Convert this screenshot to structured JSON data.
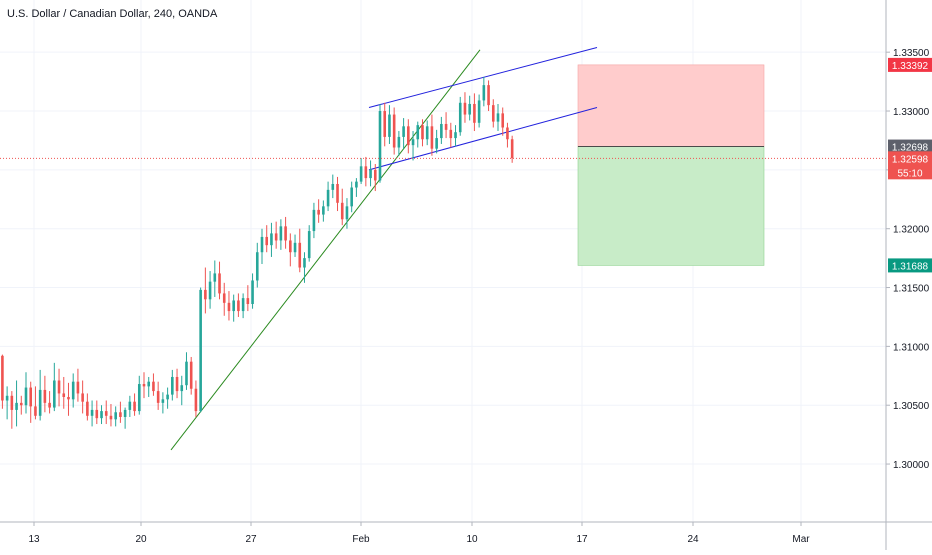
{
  "chart_data": {
    "type": "candlestick",
    "title": "U.S. Dollar / Canadian Dollar, 240, OANDA",
    "colors": {
      "up": "#26a69a",
      "down": "#ef5350",
      "trendline": "#2a8a1f",
      "channel": "#2222dd",
      "risk_zone": "#ffcccc",
      "reward_zone": "#c8ecc8",
      "stop_label": "#f23645",
      "entry_label": "#5d606b",
      "current_label": "#ef5350",
      "target_label": "#089981"
    },
    "y_axis": {
      "range": [
        1.2955,
        1.3385
      ],
      "ticks": [
        "1.33500",
        "1.33000",
        "1.32500",
        "1.32000",
        "1.31500",
        "1.31000",
        "1.30500",
        "1.30000"
      ],
      "tick_values": [
        1.335,
        1.33,
        1.325,
        1.32,
        1.315,
        1.31,
        1.305,
        1.3
      ]
    },
    "x_axis": {
      "ticks": [
        "13",
        "20",
        "27",
        "Feb",
        "10",
        "17",
        "24",
        "Mar"
      ]
    },
    "series": [
      {
        "values": [
          [
            1.3092,
            1.3093,
            1.3047,
            1.3054
          ],
          [
            1.3054,
            1.3066,
            1.3038,
            1.3058
          ],
          [
            1.3058,
            1.3062,
            1.303,
            1.3046
          ],
          [
            1.3046,
            1.3071,
            1.3032,
            1.3052
          ],
          [
            1.3052,
            1.3058,
            1.3042,
            1.305
          ],
          [
            1.305,
            1.3078,
            1.3043,
            1.3065
          ],
          [
            1.3065,
            1.307,
            1.3035,
            1.3049
          ],
          [
            1.3049,
            1.3066,
            1.3038,
            1.3041
          ],
          [
            1.3041,
            1.308,
            1.3037,
            1.3063
          ],
          [
            1.3063,
            1.3075,
            1.3044,
            1.3052
          ],
          [
            1.3052,
            1.3062,
            1.3043,
            1.3048
          ],
          [
            1.3048,
            1.3086,
            1.3045,
            1.3071
          ],
          [
            1.3071,
            1.3081,
            1.3049,
            1.306
          ],
          [
            1.306,
            1.3074,
            1.3047,
            1.3057
          ],
          [
            1.3057,
            1.3069,
            1.3041,
            1.3055
          ],
          [
            1.3055,
            1.3077,
            1.3048,
            1.307
          ],
          [
            1.307,
            1.3081,
            1.3053,
            1.306
          ],
          [
            1.306,
            1.3071,
            1.3043,
            1.3053
          ],
          [
            1.3053,
            1.306,
            1.3037,
            1.3041
          ],
          [
            1.3041,
            1.3054,
            1.3032,
            1.3046
          ],
          [
            1.3046,
            1.3054,
            1.3034,
            1.3039
          ],
          [
            1.3039,
            1.305,
            1.3034,
            1.3045
          ],
          [
            1.3045,
            1.3054,
            1.3034,
            1.3041
          ],
          [
            1.3041,
            1.3051,
            1.3032,
            1.3038
          ],
          [
            1.3038,
            1.3049,
            1.3032,
            1.3044
          ],
          [
            1.3044,
            1.3053,
            1.3035,
            1.304
          ],
          [
            1.304,
            1.3048,
            1.303,
            1.3046
          ],
          [
            1.3046,
            1.3058,
            1.304,
            1.3053
          ],
          [
            1.3053,
            1.306,
            1.3041,
            1.3045
          ],
          [
            1.3045,
            1.3075,
            1.3042,
            1.3068
          ],
          [
            1.3068,
            1.3078,
            1.3056,
            1.3066
          ],
          [
            1.3066,
            1.3074,
            1.3057,
            1.307
          ],
          [
            1.307,
            1.3077,
            1.3058,
            1.3062
          ],
          [
            1.3062,
            1.307,
            1.3046,
            1.3052
          ],
          [
            1.3052,
            1.3061,
            1.3043,
            1.3055
          ],
          [
            1.3055,
            1.3065,
            1.3047,
            1.3059
          ],
          [
            1.3059,
            1.308,
            1.3054,
            1.3074
          ],
          [
            1.3074,
            1.3081,
            1.3056,
            1.3062
          ],
          [
            1.3062,
            1.3075,
            1.305,
            1.3067
          ],
          [
            1.3067,
            1.3095,
            1.3063,
            1.3087
          ],
          [
            1.3087,
            1.3091,
            1.3059,
            1.3064
          ],
          [
            1.3064,
            1.3071,
            1.304,
            1.3045
          ],
          [
            1.3045,
            1.315,
            1.3044,
            1.3148
          ],
          [
            1.3148,
            1.3167,
            1.3128,
            1.314
          ],
          [
            1.314,
            1.3164,
            1.3132,
            1.3155
          ],
          [
            1.3155,
            1.3173,
            1.3142,
            1.3162
          ],
          [
            1.3162,
            1.3172,
            1.314,
            1.3145
          ],
          [
            1.3145,
            1.3154,
            1.3126,
            1.3137
          ],
          [
            1.3137,
            1.3147,
            1.3122,
            1.313
          ],
          [
            1.313,
            1.3144,
            1.3121,
            1.3139
          ],
          [
            1.3139,
            1.3145,
            1.3125,
            1.313
          ],
          [
            1.313,
            1.3145,
            1.3124,
            1.3141
          ],
          [
            1.3141,
            1.3152,
            1.313,
            1.3136
          ],
          [
            1.3136,
            1.3162,
            1.3132,
            1.3156
          ],
          [
            1.3156,
            1.3188,
            1.315,
            1.318
          ],
          [
            1.318,
            1.32,
            1.317,
            1.3193
          ],
          [
            1.3193,
            1.3203,
            1.318,
            1.3186
          ],
          [
            1.3186,
            1.3205,
            1.3176,
            1.3196
          ],
          [
            1.3196,
            1.3206,
            1.3183,
            1.319
          ],
          [
            1.319,
            1.3208,
            1.3182,
            1.3202
          ],
          [
            1.3202,
            1.321,
            1.3183,
            1.319
          ],
          [
            1.319,
            1.3196,
            1.3168,
            1.318
          ],
          [
            1.318,
            1.3195,
            1.3176,
            1.3188
          ],
          [
            1.3188,
            1.32,
            1.3163,
            1.3167
          ],
          [
            1.3167,
            1.318,
            1.3154,
            1.3175
          ],
          [
            1.3175,
            1.3203,
            1.3172,
            1.3198
          ],
          [
            1.3198,
            1.3222,
            1.3192,
            1.3216
          ],
          [
            1.3216,
            1.3225,
            1.3205,
            1.3212
          ],
          [
            1.3212,
            1.3224,
            1.3206,
            1.3219
          ],
          [
            1.3219,
            1.324,
            1.3215,
            1.3233
          ],
          [
            1.3233,
            1.3246,
            1.3226,
            1.3238
          ],
          [
            1.3238,
            1.3244,
            1.3215,
            1.3222
          ],
          [
            1.3222,
            1.3234,
            1.3203,
            1.3208
          ],
          [
            1.3208,
            1.3226,
            1.32,
            1.3219
          ],
          [
            1.3219,
            1.324,
            1.3214,
            1.3235
          ],
          [
            1.3235,
            1.3243,
            1.3227,
            1.324
          ],
          [
            1.324,
            1.326,
            1.3238,
            1.3253
          ],
          [
            1.3253,
            1.3261,
            1.3236,
            1.3243
          ],
          [
            1.3243,
            1.3258,
            1.3236,
            1.325
          ],
          [
            1.325,
            1.3255,
            1.3232,
            1.3241
          ],
          [
            1.3241,
            1.3306,
            1.3239,
            1.33
          ],
          [
            1.33,
            1.3307,
            1.327,
            1.3278
          ],
          [
            1.3278,
            1.3305,
            1.3272,
            1.3297
          ],
          [
            1.3297,
            1.3303,
            1.3263,
            1.3269
          ],
          [
            1.3269,
            1.3283,
            1.3262,
            1.3278
          ],
          [
            1.3278,
            1.3294,
            1.3268,
            1.3287
          ],
          [
            1.3287,
            1.3293,
            1.3264,
            1.3271
          ],
          [
            1.3271,
            1.3283,
            1.3258,
            1.3276
          ],
          [
            1.3276,
            1.3291,
            1.3269,
            1.3288
          ],
          [
            1.3288,
            1.3293,
            1.327,
            1.3276
          ],
          [
            1.3276,
            1.3292,
            1.3271,
            1.3287
          ],
          [
            1.3287,
            1.3297,
            1.3262,
            1.3268
          ],
          [
            1.3268,
            1.3284,
            1.3264,
            1.3277
          ],
          [
            1.3277,
            1.3295,
            1.3272,
            1.3289
          ],
          [
            1.3289,
            1.3299,
            1.3277,
            1.3284
          ],
          [
            1.3284,
            1.329,
            1.3269,
            1.3277
          ],
          [
            1.3277,
            1.3288,
            1.327,
            1.3282
          ],
          [
            1.3282,
            1.3312,
            1.3279,
            1.3307
          ],
          [
            1.3307,
            1.3316,
            1.329,
            1.3297
          ],
          [
            1.3297,
            1.3313,
            1.3292,
            1.3306
          ],
          [
            1.3306,
            1.3315,
            1.3283,
            1.329
          ],
          [
            1.329,
            1.3314,
            1.3286,
            1.3309
          ],
          [
            1.3309,
            1.3329,
            1.3304,
            1.3322
          ],
          [
            1.3322,
            1.3326,
            1.33,
            1.3305
          ],
          [
            1.3305,
            1.331,
            1.3286,
            1.3291
          ],
          [
            1.3291,
            1.3306,
            1.3283,
            1.3298
          ],
          [
            1.3298,
            1.3303,
            1.3279,
            1.3286
          ],
          [
            1.3286,
            1.329,
            1.3269,
            1.3276
          ],
          [
            1.3276,
            1.3279,
            1.3256,
            1.326
          ]
        ]
      }
    ],
    "drawings": {
      "trendline": [
        [
          1.3012,
          1.3352
        ]
      ],
      "channel_upper": [
        1.3303,
        1.3354
      ],
      "channel_lower": [
        1.325,
        1.3303
      ],
      "risk_reward": {
        "stop": 1.33392,
        "entry": 1.32698,
        "target": 1.31688
      }
    },
    "price_labels": {
      "stop": "1.33392",
      "entry": "1.32698",
      "current": "1.32598",
      "countdown": "55:10",
      "target": "1.31688"
    },
    "current_price": 1.32598
  }
}
